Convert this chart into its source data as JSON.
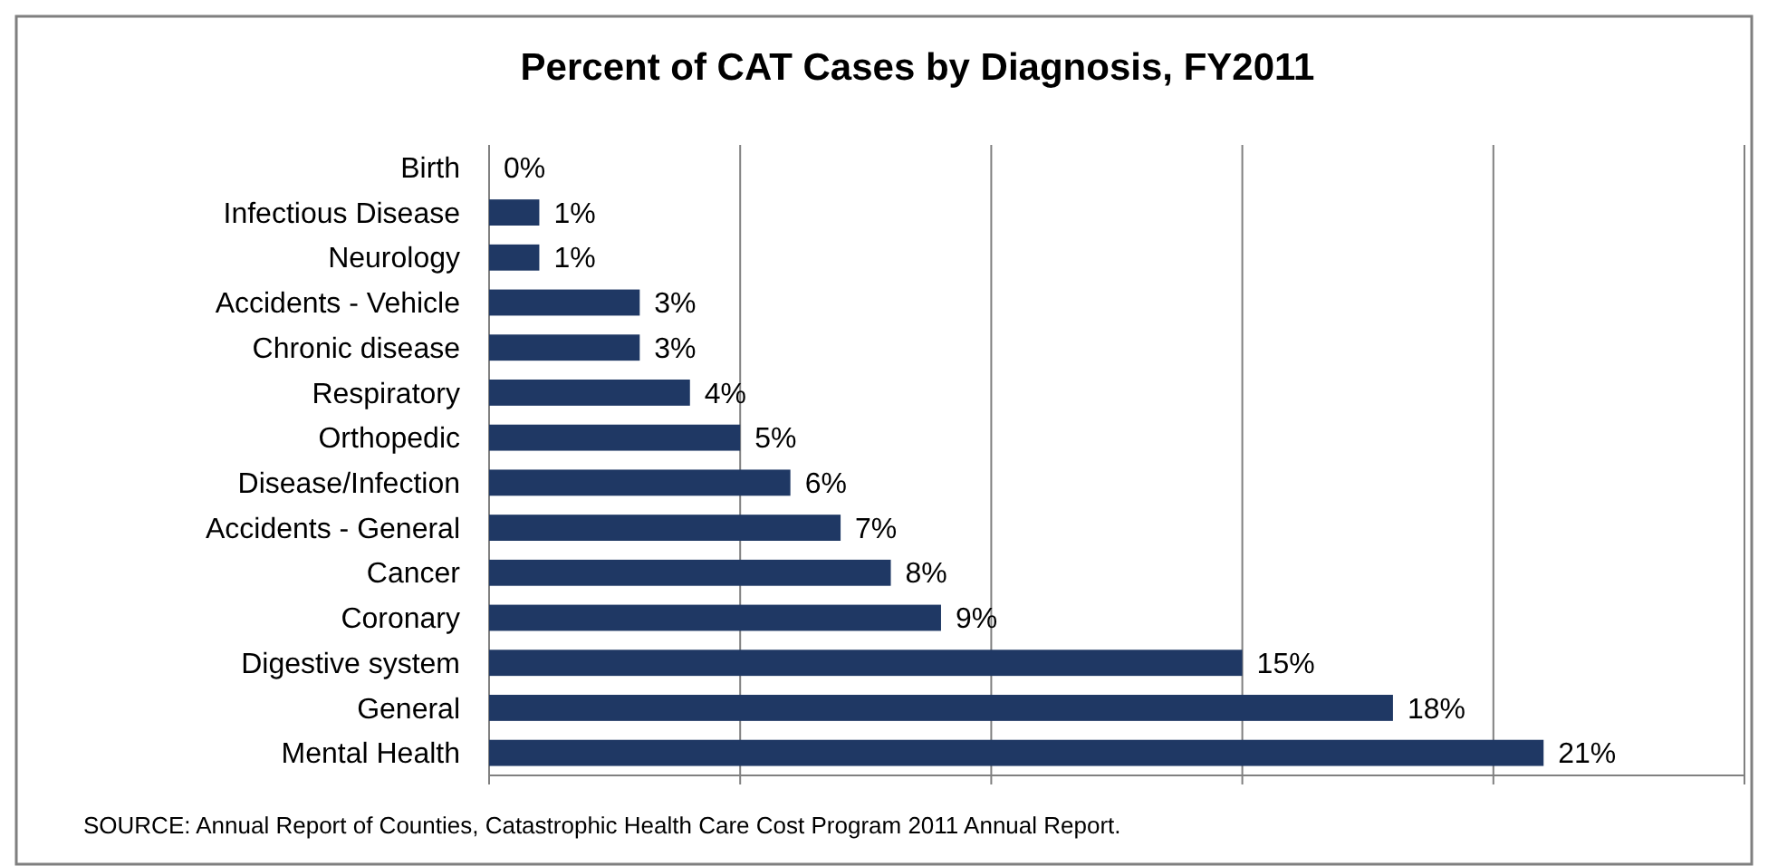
{
  "chart_data": {
    "type": "bar",
    "orientation": "horizontal",
    "title": "Percent of CAT Cases by Diagnosis, FY2011",
    "categories": [
      "Birth",
      "Infectious Disease",
      "Neurology",
      "Accidents - Vehicle",
      "Chronic disease",
      "Respiratory",
      "Orthopedic",
      "Disease/Infection",
      "Accidents - General",
      "Cancer",
      "Coronary",
      "Digestive system",
      "General",
      "Mental Health"
    ],
    "values": [
      0,
      1,
      1,
      3,
      3,
      4,
      5,
      6,
      7,
      8,
      9,
      15,
      18,
      21
    ],
    "value_labels": [
      "0%",
      "1%",
      "1%",
      "3%",
      "3%",
      "4%",
      "5%",
      "6%",
      "7%",
      "8%",
      "9%",
      "15%",
      "18%",
      "21%"
    ],
    "color": "#1f3864",
    "xlim": [
      0,
      25
    ],
    "xticks": [
      {
        "value": 0,
        "label": null
      },
      {
        "value": 5,
        "label": null
      },
      {
        "value": 10,
        "label": null
      },
      {
        "value": 15,
        "label": null
      },
      {
        "value": 20,
        "label": null
      },
      {
        "value": 25,
        "label": null
      }
    ],
    "grid": "x",
    "tick_labels": "y",
    "annotations": [
      "SOURCE:  Annual Report of Counties, Catastrophic Health Care Cost Program 2011 Annual Report."
    ]
  }
}
